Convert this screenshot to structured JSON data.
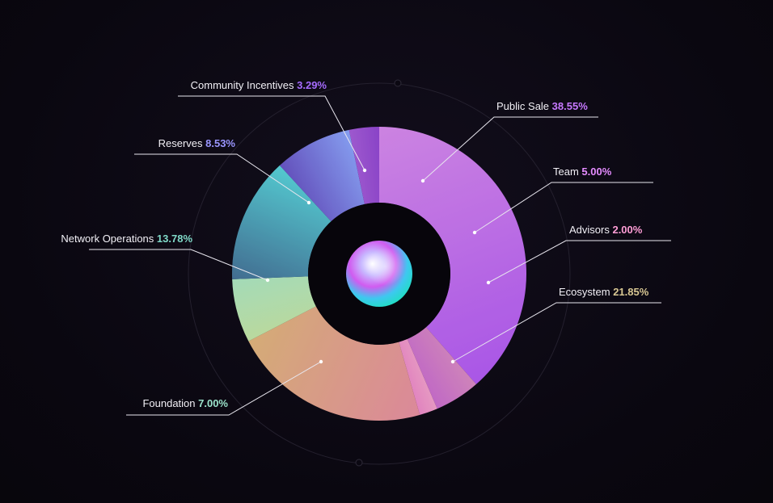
{
  "chart_data": {
    "type": "pie",
    "donut": true,
    "legend": "callout-labels",
    "slices": [
      {
        "name": "Public Sale",
        "pct_text": "38.55%",
        "value": 38.55,
        "color": "#b45cf5",
        "color2": "#d98cf0"
      },
      {
        "name": "Team",
        "pct_text": "5.00%",
        "value": 5.0,
        "color": "#e07ae6",
        "color2": "#f19ad8"
      },
      {
        "name": "Advisors",
        "pct_text": "2.00%",
        "value": 2.0,
        "color": "#f08ccc",
        "color2": "#f5a4cf"
      },
      {
        "name": "Ecosystem",
        "pct_text": "21.85%",
        "value": 21.85,
        "color": "#f8c88a",
        "color2": "#ff9fb3"
      },
      {
        "name": "Foundation",
        "pct_text": "7.00%",
        "value": 7.0,
        "color": "#aee8c4",
        "color2": "#c6e7a8"
      },
      {
        "name": "Network Operations",
        "pct_text": "13.78%",
        "value": 13.78,
        "color": "#62eaf2",
        "color2": "#4d7ea8"
      },
      {
        "name": "Reserves",
        "pct_text": "8.53%",
        "value": 8.53,
        "color": "#8ea8ff",
        "color2": "#6a56c8"
      },
      {
        "name": "Community Incentives",
        "pct_text": "3.29%",
        "value": 3.29,
        "color": "#a04ee8",
        "color2": "#b868f0"
      }
    ],
    "label_colors": {
      "Public Sale": "#c779ff",
      "Team": "#e58cff",
      "Advisors": "#ff9ed6",
      "Ecosystem": "#d8c793",
      "Foundation": "#9be3cb",
      "Network Operations": "#7fd9c8",
      "Reserves": "#9a96ff",
      "Community Incentives": "#a66bff"
    }
  }
}
